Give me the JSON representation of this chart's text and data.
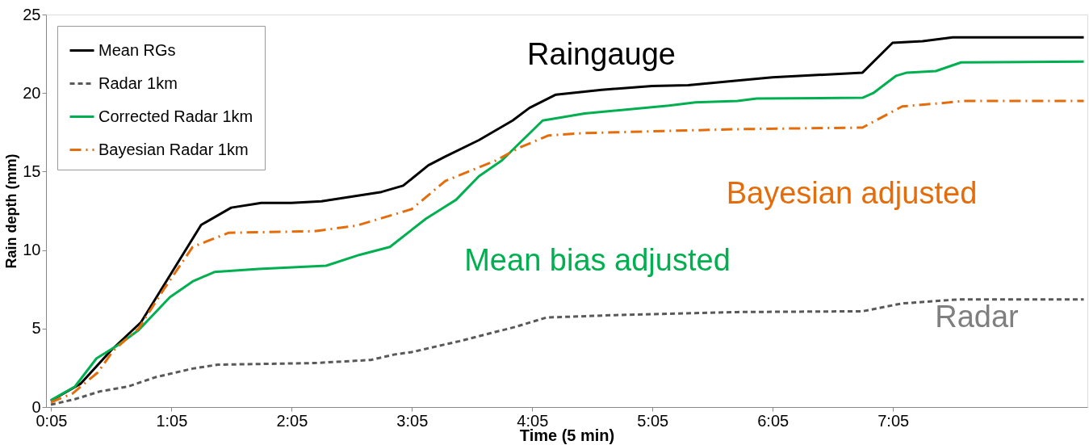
{
  "chart_data": {
    "type": "line",
    "xlabel": "Time (5 min)",
    "ylabel": "Rain depth (mm)",
    "xlim": [
      0.04,
      8.7
    ],
    "ylim": [
      0,
      25
    ],
    "xticks": [
      {
        "value": 0.0833,
        "label": "0:05"
      },
      {
        "value": 1.0833,
        "label": "1:05"
      },
      {
        "value": 2.0833,
        "label": "2:05"
      },
      {
        "value": 3.0833,
        "label": "3:05"
      },
      {
        "value": 4.0833,
        "label": "4:05"
      },
      {
        "value": 5.0833,
        "label": "5:05"
      },
      {
        "value": 6.0833,
        "label": "6:05"
      },
      {
        "value": 7.0833,
        "label": "7:05"
      }
    ],
    "yticks": [
      0,
      5,
      10,
      15,
      20,
      25
    ],
    "grid": false,
    "legend": "top left",
    "series": [
      {
        "name": "Mean RGs",
        "color": "#000000",
        "line_style": "solid",
        "x": [
          0.08,
          0.33,
          0.58,
          0.83,
          1.08,
          1.33,
          1.58,
          1.83,
          2.08,
          2.33,
          2.58,
          2.83,
          3.01,
          3.22,
          3.36,
          3.64,
          3.92,
          4.06,
          4.28,
          4.66,
          5.08,
          5.38,
          5.79,
          6.08,
          6.83,
          7.08,
          7.33,
          7.58,
          8.67
        ],
        "values": [
          0.4,
          1.5,
          3.6,
          5.4,
          8.5,
          11.6,
          12.7,
          13.0,
          13.0,
          13.1,
          13.4,
          13.7,
          14.1,
          15.4,
          15.95,
          17.0,
          18.25,
          19.05,
          19.9,
          20.2,
          20.45,
          20.5,
          20.8,
          21.0,
          21.3,
          23.2,
          23.3,
          23.55,
          23.55
        ]
      },
      {
        "name": "Radar 1km",
        "color": "#595959",
        "line_style": "dashed",
        "x": [
          0.08,
          0.28,
          0.49,
          0.72,
          0.95,
          1.26,
          1.47,
          2.27,
          2.74,
          2.94,
          3.08,
          3.48,
          3.94,
          4.2,
          4.75,
          5.79,
          6.83,
          7.16,
          7.62,
          8.67
        ],
        "values": [
          0.15,
          0.5,
          1.0,
          1.3,
          1.9,
          2.45,
          2.7,
          2.8,
          3.0,
          3.35,
          3.5,
          4.2,
          5.1,
          5.7,
          5.85,
          6.05,
          6.1,
          6.6,
          6.85,
          6.85
        ]
      },
      {
        "name": "Corrected Radar 1km",
        "color": "#00b050",
        "line_style": "solid",
        "x": [
          0.08,
          0.28,
          0.46,
          0.65,
          0.81,
          1.07,
          1.26,
          1.44,
          1.81,
          2.37,
          2.65,
          2.9,
          3.2,
          3.45,
          3.64,
          3.83,
          4.17,
          4.52,
          5.22,
          5.44,
          5.79,
          5.95,
          6.83,
          6.92,
          7.11,
          7.2,
          7.44,
          7.65,
          8.67
        ],
        "values": [
          0.43,
          1.3,
          3.1,
          4.0,
          4.9,
          7.0,
          8.0,
          8.6,
          8.8,
          9.0,
          9.7,
          10.2,
          12.0,
          13.2,
          14.7,
          15.7,
          18.25,
          18.7,
          19.2,
          19.4,
          19.5,
          19.65,
          19.7,
          20.0,
          21.1,
          21.3,
          21.4,
          21.95,
          22.0
        ]
      },
      {
        "name": "Bayesian Radar 1km",
        "color": "#e46c0a",
        "line_style": "dashdot",
        "x": [
          0.08,
          0.26,
          0.47,
          0.6,
          0.81,
          1.02,
          1.26,
          1.56,
          2.27,
          2.62,
          3.08,
          3.36,
          3.78,
          3.97,
          4.22,
          4.52,
          5.79,
          6.83,
          7.16,
          7.55,
          7.67,
          8.67
        ],
        "values": [
          0.3,
          0.86,
          2.2,
          3.6,
          5.0,
          7.5,
          10.2,
          11.1,
          11.2,
          11.55,
          12.6,
          14.4,
          15.7,
          16.5,
          17.3,
          17.45,
          17.7,
          17.8,
          19.15,
          19.4,
          19.5,
          19.5
        ]
      }
    ],
    "annotations": [
      "Raingauge",
      "Radar",
      "Mean bias adjusted",
      "Bayesian adjusted"
    ]
  }
}
